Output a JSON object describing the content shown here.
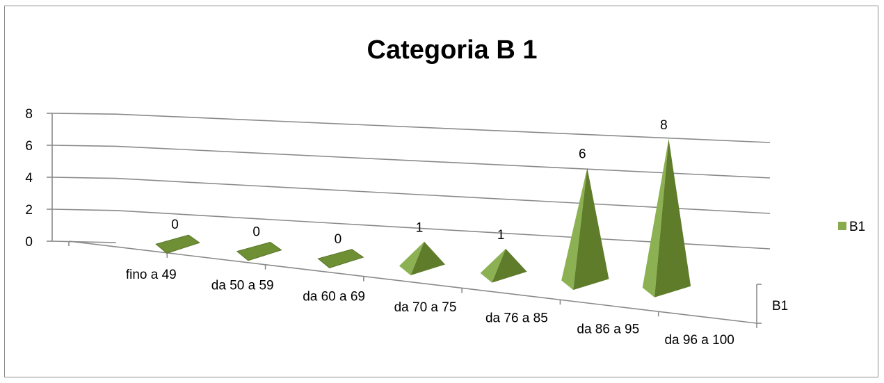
{
  "chart_data": {
    "type": "bar",
    "shape": "pyramid-3d",
    "title": "Categoria B 1",
    "xlabel": "",
    "ylabel": "",
    "ylim": [
      0,
      8
    ],
    "yticks": [
      "0",
      "2",
      "4",
      "6",
      "8"
    ],
    "grid": true,
    "legend_position": "right",
    "depth_axis_label": "B1",
    "categories": [
      "fino a 49",
      "da 50 a 59",
      "da 60 a 69",
      "da 70 a 75",
      "da 76 a 85",
      "da 86 a 95",
      "da 96 a 100"
    ],
    "series": [
      {
        "name": "B1",
        "values": [
          0,
          0,
          0,
          1,
          1,
          6,
          8
        ],
        "color": "#8aab4d"
      }
    ],
    "data_labels": [
      "0",
      "0",
      "0",
      "1",
      "1",
      "6",
      "8"
    ]
  }
}
